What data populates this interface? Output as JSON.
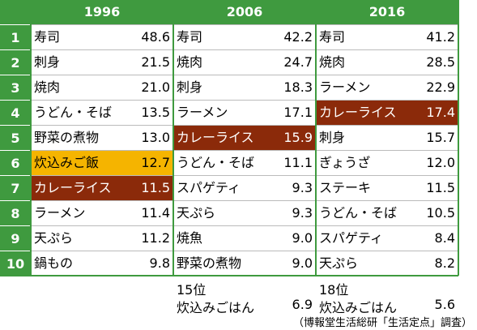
{
  "table": {
    "headers": [
      "1996",
      "2006",
      "2016"
    ],
    "rows": [
      {
        "rank": "1",
        "cells": [
          [
            "寿司",
            "48.6"
          ],
          [
            "寿司",
            "42.2"
          ],
          [
            "寿司",
            "41.2"
          ]
        ]
      },
      {
        "rank": "2",
        "cells": [
          [
            "刺身",
            "21.5"
          ],
          [
            "焼肉",
            "24.7"
          ],
          [
            "焼肉",
            "28.5"
          ]
        ]
      },
      {
        "rank": "3",
        "cells": [
          [
            "焼肉",
            "21.0"
          ],
          [
            "刺身",
            "18.3"
          ],
          [
            "ラーメン",
            "22.9"
          ]
        ]
      },
      {
        "rank": "4",
        "cells": [
          [
            "うどん・そば",
            "13.5"
          ],
          [
            "ラーメン",
            "17.1"
          ],
          [
            "カレーライス",
            "17.4"
          ]
        ]
      },
      {
        "rank": "5",
        "cells": [
          [
            "野菜の煮物",
            "13.0"
          ],
          [
            "カレーライス",
            "15.9"
          ],
          [
            "刺身",
            "15.7"
          ]
        ]
      },
      {
        "rank": "6",
        "cells": [
          [
            "炊込みご飯",
            "12.7"
          ],
          [
            "うどん・そば",
            "11.1"
          ],
          [
            "ぎょうざ",
            "12.0"
          ]
        ]
      },
      {
        "rank": "7",
        "cells": [
          [
            "カレーライス",
            "11.5"
          ],
          [
            "スパゲティ",
            "9.3"
          ],
          [
            "ステーキ",
            "11.5"
          ]
        ]
      },
      {
        "rank": "8",
        "cells": [
          [
            "ラーメン",
            "11.4"
          ],
          [
            "天ぷら",
            "9.3"
          ],
          [
            "うどん・そば",
            "10.5"
          ]
        ]
      },
      {
        "rank": "9",
        "cells": [
          [
            "天ぷら",
            "11.2"
          ],
          [
            "焼魚",
            "9.0"
          ],
          [
            "スパゲティ",
            "8.4"
          ]
        ]
      },
      {
        "rank": "10",
        "cells": [
          [
            "鍋もの",
            "9.8"
          ],
          [
            "野菜の煮物",
            "9.0"
          ],
          [
            "天ぷら",
            "8.2"
          ]
        ]
      }
    ],
    "notes": [
      {
        "rank": "15位",
        "name": "炊込みごはん",
        "value": "6.9"
      },
      {
        "rank": "18位",
        "name": "炊込みごはん",
        "value": "5.6"
      }
    ],
    "source": "（博報堂生活総研「生活定点」調査）"
  }
}
